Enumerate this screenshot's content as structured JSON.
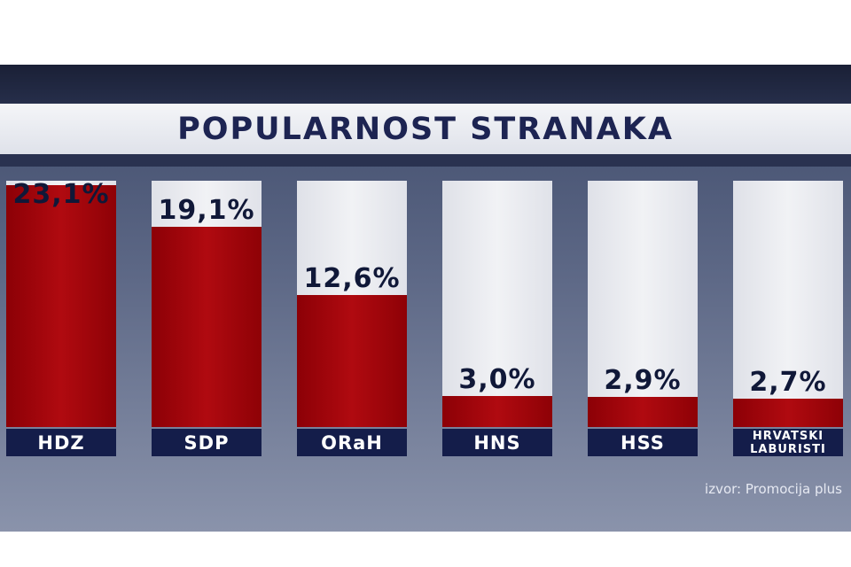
{
  "chart_data": {
    "type": "bar",
    "title": "POPULARNOST STRANAKA",
    "categories": [
      "HDZ",
      "SDP",
      "ORaH",
      "HNS",
      "HSS",
      "HRVATSKI LABURISTI"
    ],
    "values": [
      23.1,
      19.1,
      12.6,
      3.0,
      2.9,
      2.7
    ],
    "value_labels": [
      "23,1%",
      "19,1%",
      "12,6%",
      "3,0%",
      "2,9%",
      "2,7%"
    ],
    "unit": "%",
    "ylim": [
      0,
      23.5
    ],
    "grid": false,
    "legend": "none",
    "source": "izvor: Promocija plus"
  },
  "colors": {
    "bar_fill": "#a0060c",
    "label_bg": "#141d4a",
    "title": "#1d2452"
  }
}
